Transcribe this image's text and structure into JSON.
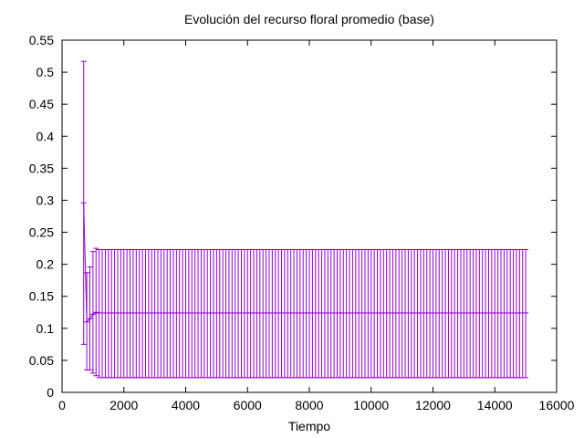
{
  "chart_data": {
    "type": "line",
    "title": "Evolución del recurso floral promedio (base)",
    "xlabel": "Tiempo",
    "ylabel": "",
    "xlim": [
      0,
      16000
    ],
    "ylim": [
      0,
      0.55
    ],
    "x_ticks": [
      "0",
      "2000",
      "4000",
      "6000",
      "8000",
      "10000",
      "12000",
      "14000",
      "16000"
    ],
    "y_ticks": [
      "0",
      "0.05",
      "0.1",
      "0.15",
      "0.2",
      "0.25",
      "0.3",
      "0.35",
      "0.4",
      "0.45",
      "0.5",
      "0.55"
    ],
    "grid": false,
    "legend": "none",
    "series_color": "#9400d3",
    "series": [
      {
        "x": [
          700,
          800,
          900,
          1000,
          1100
        ],
        "y": [
          0.296,
          0.11,
          0.115,
          0.122,
          0.125
        ],
        "ylow": [
          0.075,
          0.035,
          0.035,
          0.03,
          0.026
        ],
        "yhigh": [
          0.517,
          0.187,
          0.196,
          0.22,
          0.225
        ]
      }
    ],
    "steady_state": {
      "x_start": 1200,
      "x_end": 15000,
      "x_step": 100,
      "y": 0.124,
      "ylow": 0.023,
      "yhigh": 0.223
    }
  }
}
